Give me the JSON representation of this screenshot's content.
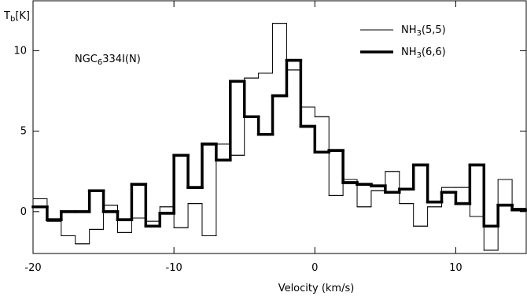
{
  "chart_data": {
    "type": "step",
    "annotation": "NGC6334I(N)",
    "x_label": "Velocity (km/s)",
    "y_label": "Tb[K]",
    "x": [
      -20,
      -19,
      -18,
      -17,
      -16,
      -15,
      -14,
      -13,
      -12,
      -11,
      -10,
      -9,
      -8,
      -7,
      -6,
      -5,
      -4,
      -3,
      -2,
      -1,
      0,
      1,
      2,
      3,
      4,
      5,
      6,
      7,
      8,
      9,
      10,
      11,
      12,
      13,
      14
    ],
    "series": [
      {
        "name": "NH3(5,5)",
        "color": "#000000",
        "width": 1,
        "values": [
          0.8,
          -0.6,
          -1.5,
          -2.0,
          -1.1,
          0.4,
          -1.3,
          -0.4,
          -0.6,
          0.3,
          -1.0,
          0.5,
          -1.5,
          4.2,
          3.5,
          8.3,
          8.6,
          11.7,
          8.8,
          6.5,
          5.9,
          1.0,
          2.0,
          0.3,
          1.3,
          2.5,
          0.5,
          -0.9,
          0.3,
          1.5,
          1.5,
          -0.3,
          -2.4,
          2.0,
          0.2
        ]
      },
      {
        "name": "NH3(6,6)",
        "color": "#000000",
        "width": 3.5,
        "values": [
          0.3,
          -0.5,
          0.0,
          0.0,
          1.3,
          0.0,
          -0.5,
          1.7,
          -0.9,
          -0.1,
          3.5,
          1.5,
          4.2,
          3.2,
          8.1,
          5.9,
          4.8,
          7.2,
          9.4,
          5.3,
          3.7,
          3.8,
          1.8,
          1.7,
          1.6,
          1.2,
          1.4,
          2.9,
          0.6,
          1.2,
          0.5,
          2.9,
          -0.9,
          0.4,
          0.1
        ]
      }
    ],
    "xlim": [
      -20,
      15
    ],
    "ylim": [
      -2.6,
      13.1
    ],
    "xticks": [
      -20,
      -10,
      0,
      10
    ],
    "yticks": [
      0,
      5,
      10
    ]
  }
}
